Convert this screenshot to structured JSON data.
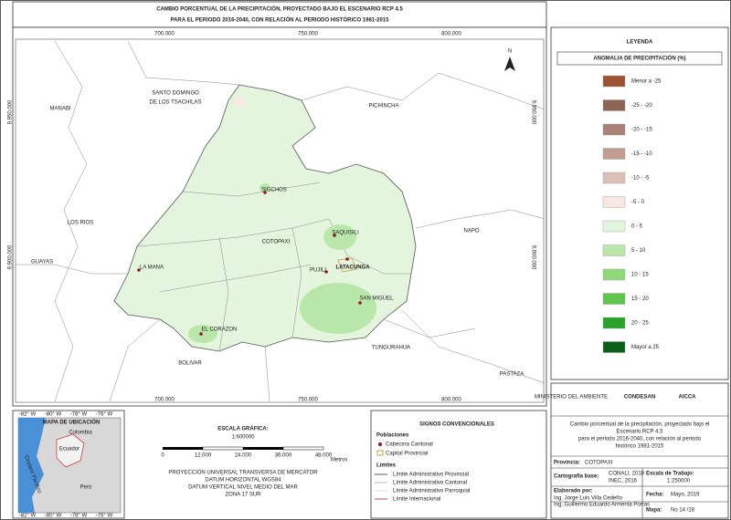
{
  "header": {
    "title": [
      "CAMBIO PORCENTUAL DE LA PRECIPITACIÓN, PROYECTADO BAJO EL ESCENARIO RCP 4.5",
      "PARA EL PERIODO 2016-2040, CON RELACIÓN AL PERIODO HISTÓRICO 1981-2015"
    ]
  },
  "map": {
    "x_coords": [
      "700.000",
      "750.000",
      "800.000"
    ],
    "y_coords": [
      "9.950.000",
      "9.900.000"
    ],
    "north": "N",
    "regions": [
      "MANABI",
      "SANTO DOMINGO",
      "DE LOS TSACHILAS",
      "PICHINCHA",
      "LOS RIOS",
      "GUAYAS",
      "NAPO",
      "COTOPAXI",
      "TUNGURAHUA",
      "BOLIVAR",
      "PASTAZA"
    ],
    "towns": [
      "SIGCHOS",
      "SAQUISILI",
      "PUJILI",
      "LATACUNGA",
      "LA MANA",
      "SAN MIGUEL",
      "EL CORAZON"
    ]
  },
  "legend": {
    "title": "LEYENDA",
    "subtitle": "ANOMALIA DE PRECIPITACIÓN (%)",
    "classes": [
      {
        "label": "Menor a -25",
        "color": "#9c5530"
      },
      {
        "label": "-25 - -20",
        "color": "#8c6456"
      },
      {
        "label": "-20 - -15",
        "color": "#a98276"
      },
      {
        "label": "-15 - -10",
        "color": "#c29d91"
      },
      {
        "label": "-10 - -5",
        "color": "#dcc0b5"
      },
      {
        "label": "-5 - 0",
        "color": "#f8e8e3"
      },
      {
        "label": "0 - 5",
        "color": "#e4f5dd"
      },
      {
        "label": "5 - 10",
        "color": "#b9e7aa"
      },
      {
        "label": "10 - 15",
        "color": "#8fd97c"
      },
      {
        "label": "15 - 20",
        "color": "#5ec64c"
      },
      {
        "label": "20 - 25",
        "color": "#28a42a"
      },
      {
        "label": "Mayor a 25",
        "color": "#0b5e17"
      }
    ]
  },
  "location": {
    "title": "MAPA DE UBICACIÓN",
    "countries": [
      "Colombia",
      "Ecuador",
      "Perú"
    ],
    "ocean": "Oceano Pacifico",
    "lon": [
      "-82° W",
      "-80° W",
      "-78° W",
      "-76° W"
    ]
  },
  "scale": {
    "title": "ESCALA GRÁFICA:",
    "ratio": "1:600000",
    "ticks": [
      "0",
      "12.000",
      "24.000",
      "36.000",
      "48.000"
    ],
    "unit": "Metros",
    "projection": [
      "PROYECCIÓN UNIVERSAL TRANSVERSA DE MERCATOR",
      "DATUM HORIZONTAL WGS84",
      "DATUM VERTICAL NIVEL MEDIO DEL MAR",
      "ZONA 17 SUR"
    ]
  },
  "signs": {
    "title": "SIGNOS CONVENCIONALES",
    "populations": "Poblaciones",
    "cabecera": "Cabecera Cantonal",
    "capital": "Capital Provincial",
    "limits": "Límites",
    "limit_items": [
      "Límite Administrativo Provincial",
      "Límite Administrativo Cantonal",
      "Límite Administrativo Parroquial",
      "Límite Internacional"
    ]
  },
  "info": {
    "logos": [
      "MINISTERIO DEL AMBIENTE",
      "CONDESAN",
      "AICCA"
    ],
    "description": [
      "Cambio porcentual de la precipitación, proyectado bajo el",
      "Escenario RCP 4.5",
      "para el periodo 2016-2040, con relación al periodo",
      "histórico 1981-2015"
    ],
    "province_label": "Provincia:",
    "province": "COTOPAXI",
    "base_label": "Cartografía base:",
    "base": [
      "CONALI, 2018",
      "INEC, 2016"
    ],
    "work_scale_label": "Escala de Trabajo:",
    "work_scale": "1:250000",
    "made_label": "Elaborado por:",
    "made": [
      "Ing. Jorge Luis Villa Cedeño",
      "Ing. Guillermo Eduardo Armenta Porras"
    ],
    "date_label": "Fecha:",
    "date": "Mayo, 2019",
    "map_label": "Mapa:",
    "map_no": "No 14 /18"
  }
}
